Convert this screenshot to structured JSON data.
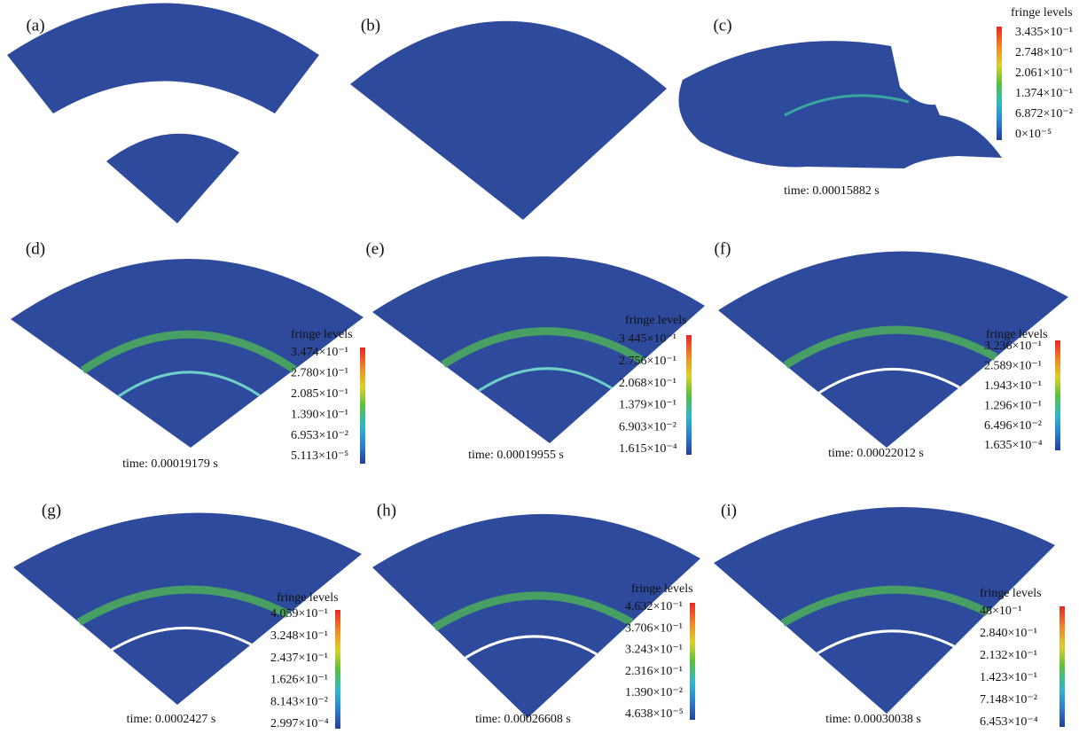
{
  "panels": [
    {
      "label": "(a)"
    },
    {
      "label": "(b)"
    },
    {
      "label": "(c)",
      "time": "time: 0.00015882 s",
      "legend": {
        "title": "fringe levels",
        "levels": [
          "3.435×10⁻¹",
          "2.748×10⁻¹",
          "2.061×10⁻¹",
          "1.374×10⁻¹",
          "6.872×10⁻²",
          "0×10⁻⁵"
        ]
      }
    },
    {
      "label": "(d)",
      "time": "time: 0.00019179 s",
      "legend": {
        "title": "fringe levels",
        "levels": [
          "3.474×10⁻¹",
          "2.780×10⁻¹",
          "2.085×10⁻¹",
          "1.390×10⁻¹",
          "6.953×10⁻²",
          "5.113×10⁻⁵"
        ]
      }
    },
    {
      "label": "(e)",
      "time": "time: 0.00019955 s",
      "legend": {
        "title": "fringe levels",
        "levels": [
          "3 445×10⁻¹",
          "2.756×10⁻¹",
          "2.068×10⁻¹",
          "1.379×10⁻¹",
          "6.903×10⁻²",
          "1.615×10⁻⁴"
        ]
      }
    },
    {
      "label": "(f)",
      "time": "time: 0.00022012 s",
      "legend": {
        "title": "fringe levels",
        "levels": [
          "3.236×10⁻¹",
          "2.589×10⁻¹",
          "1.943×10⁻¹",
          "1.296×10⁻¹",
          "6.496×10⁻²",
          "1.635×10⁻⁴"
        ]
      }
    },
    {
      "label": "(g)",
      "time": "time: 0.0002427 s",
      "legend": {
        "title": "fringe levels",
        "levels": [
          "4.059×10⁻¹",
          "3.248×10⁻¹",
          "2.437×10⁻¹",
          "1.626×10⁻¹",
          "8.143×10⁻²",
          "2.997×10⁻⁴"
        ]
      }
    },
    {
      "label": "(h)",
      "time": "time: 0.00026608 s",
      "legend": {
        "title": "fringe levels",
        "levels": [
          "4.632×10⁻¹",
          "3.706×10⁻¹",
          "3.243×10⁻¹",
          "2.316×10⁻¹",
          "1.390×10⁻²",
          "4.638×10⁻⁵"
        ]
      }
    },
    {
      "label": "(i)",
      "time": "time: 0.00030038 s",
      "legend": {
        "title": "fringe levels",
        "levels": [
          "48×10⁻¹",
          "2.840×10⁻¹",
          "2.132×10⁻¹",
          "1.423×10⁻¹",
          "7.148×10⁻²",
          "6.453×10⁻⁴"
        ]
      }
    }
  ]
}
